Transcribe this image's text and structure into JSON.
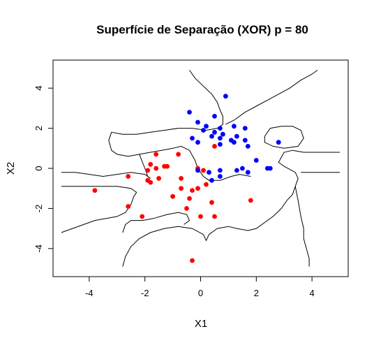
{
  "chart_data": {
    "type": "scatter",
    "title": "Superfície de Separação (XOR) p = 80",
    "xlabel": "X1",
    "ylabel": "X2",
    "xlim": [
      -5.3,
      5.3
    ],
    "ylim": [
      -5.4,
      5.4
    ],
    "x_ticks": [
      -4,
      -2,
      0,
      2,
      4
    ],
    "y_ticks": [
      -4,
      -2,
      0,
      2,
      4
    ],
    "grid": false,
    "legend": "none",
    "series": [
      {
        "color": "#ff0000",
        "points": [
          [
            -3.8,
            -1.1
          ],
          [
            -2.6,
            -0.4
          ],
          [
            -2.6,
            -1.9
          ],
          [
            -2.1,
            -2.4
          ],
          [
            -1.9,
            -0.1
          ],
          [
            -1.8,
            0.2
          ],
          [
            -1.9,
            -0.6
          ],
          [
            -1.8,
            -0.7
          ],
          [
            -1.6,
            0.7
          ],
          [
            -1.6,
            0.0
          ],
          [
            -1.5,
            -0.5
          ],
          [
            -1.3,
            0.1
          ],
          [
            -1.2,
            0.1
          ],
          [
            -1.0,
            -1.4
          ],
          [
            -0.8,
            0.7
          ],
          [
            -0.7,
            -0.5
          ],
          [
            -0.7,
            -1.0
          ],
          [
            -0.5,
            -2.0
          ],
          [
            -0.4,
            -1.5
          ],
          [
            -0.3,
            -1.1
          ],
          [
            -0.1,
            -1.0
          ],
          [
            -0.3,
            -4.6
          ],
          [
            -0.1,
            0.0
          ],
          [
            0.0,
            -2.4
          ],
          [
            0.1,
            -0.1
          ],
          [
            0.2,
            -0.8
          ],
          [
            0.4,
            -1.7
          ],
          [
            0.5,
            -2.4
          ],
          [
            0.5,
            1.1
          ],
          [
            1.8,
            -1.6
          ]
        ]
      },
      {
        "color": "#0000ff",
        "points": [
          [
            -0.4,
            2.8
          ],
          [
            -0.3,
            1.5
          ],
          [
            -0.1,
            1.3
          ],
          [
            -0.1,
            2.3
          ],
          [
            0.1,
            1.9
          ],
          [
            0.2,
            2.1
          ],
          [
            0.4,
            1.6
          ],
          [
            0.5,
            2.6
          ],
          [
            0.5,
            1.8
          ],
          [
            0.7,
            1.5
          ],
          [
            0.7,
            1.2
          ],
          [
            0.8,
            1.7
          ],
          [
            0.7,
            2.0
          ],
          [
            0.9,
            3.6
          ],
          [
            1.1,
            1.4
          ],
          [
            1.2,
            1.3
          ],
          [
            1.3,
            1.6
          ],
          [
            1.2,
            2.1
          ],
          [
            1.6,
            2.0
          ],
          [
            1.6,
            1.4
          ],
          [
            1.7,
            1.1
          ],
          [
            1.5,
            0.0
          ],
          [
            1.3,
            -0.1
          ],
          [
            1.7,
            -0.2
          ],
          [
            2.0,
            0.4
          ],
          [
            2.4,
            0.0
          ],
          [
            2.5,
            0.0
          ],
          [
            2.8,
            1.3
          ],
          [
            0.3,
            -0.2
          ],
          [
            0.4,
            -0.6
          ],
          [
            0.7,
            -0.1
          ],
          [
            0.7,
            -0.4
          ],
          [
            -0.1,
            -0.1
          ]
        ]
      }
    ],
    "contours": [
      [
        [
          -5.0,
          -3.2
        ],
        [
          -4.6,
          -3.0
        ],
        [
          -4.2,
          -2.8
        ],
        [
          -3.8,
          -2.6
        ],
        [
          -3.4,
          -2.5
        ],
        [
          -3.0,
          -2.4
        ],
        [
          -2.7,
          -2.2
        ],
        [
          -2.5,
          -1.8
        ],
        [
          -2.4,
          -1.4
        ],
        [
          -2.3,
          -1.2
        ],
        [
          -2.5,
          -1.0
        ],
        [
          -3.0,
          -0.9
        ],
        [
          -3.6,
          -0.9
        ],
        [
          -4.2,
          -0.9
        ],
        [
          -5.0,
          -0.9
        ]
      ],
      [
        [
          -5.0,
          -0.2
        ],
        [
          -4.5,
          -0.2
        ],
        [
          -4.0,
          -0.3
        ],
        [
          -3.5,
          -0.4
        ],
        [
          -3.0,
          -0.3
        ],
        [
          -2.5,
          -0.2
        ],
        [
          -2.0,
          -0.3
        ],
        [
          -1.8,
          -0.5
        ]
      ],
      [
        [
          -2.8,
          -4.9
        ],
        [
          -2.7,
          -4.4
        ],
        [
          -2.5,
          -3.9
        ],
        [
          -2.2,
          -3.5
        ],
        [
          -1.8,
          -3.2
        ],
        [
          -1.3,
          -3.0
        ],
        [
          -0.8,
          -2.9
        ],
        [
          -0.3,
          -3.0
        ],
        [
          0.1,
          -3.3
        ],
        [
          0.2,
          -3.6
        ],
        [
          0.3,
          -3.3
        ],
        [
          0.6,
          -3.0
        ],
        [
          1.0,
          -2.9
        ],
        [
          1.3,
          -3.0
        ]
      ],
      [
        [
          1.3,
          -3.0
        ],
        [
          1.7,
          -3.1
        ],
        [
          2.0,
          -3.0
        ],
        [
          2.3,
          -2.7
        ],
        [
          2.6,
          -2.4
        ],
        [
          2.9,
          -2.0
        ],
        [
          3.1,
          -1.6
        ],
        [
          3.3,
          -1.3
        ],
        [
          3.4,
          -0.9
        ],
        [
          3.5,
          -0.5
        ],
        [
          3.4,
          -0.2
        ],
        [
          3.0,
          0.1
        ],
        [
          2.8,
          0.3
        ],
        [
          3.0,
          0.8
        ],
        [
          3.3,
          0.9
        ],
        [
          3.7,
          0.8
        ],
        [
          4.1,
          0.8
        ],
        [
          4.6,
          0.8
        ],
        [
          5.0,
          0.8
        ]
      ],
      [
        [
          5.0,
          -0.2
        ],
        [
          4.5,
          -0.2
        ],
        [
          4.0,
          -0.2
        ],
        [
          3.6,
          -0.2
        ]
      ],
      [
        [
          3.4,
          -0.9
        ],
        [
          3.5,
          -1.6
        ],
        [
          3.6,
          -2.4
        ],
        [
          3.7,
          -3.0
        ],
        [
          3.7,
          -3.5
        ],
        [
          3.8,
          -4.0
        ],
        [
          3.9,
          -4.5
        ],
        [
          3.9,
          -4.9
        ]
      ],
      [
        [
          -2.8,
          -3.2
        ],
        [
          -2.7,
          -2.8
        ],
        [
          -2.5,
          -2.6
        ],
        [
          -2.1,
          -2.6
        ],
        [
          -1.7,
          -2.5
        ],
        [
          -1.2,
          -2.3
        ],
        [
          -0.8,
          -2.2
        ],
        [
          -0.5,
          -2.3
        ],
        [
          -0.4,
          -2.6
        ],
        [
          -0.6,
          -2.8
        ]
      ],
      [
        [
          -0.4,
          4.9
        ],
        [
          -0.2,
          4.5
        ],
        [
          0.1,
          4.1
        ],
        [
          0.4,
          3.7
        ],
        [
          0.6,
          3.3
        ],
        [
          0.7,
          2.9
        ],
        [
          0.8,
          2.6
        ],
        [
          0.8,
          2.2
        ],
        [
          0.6,
          2.0
        ],
        [
          0.2,
          1.9
        ],
        [
          -0.3,
          2.0
        ],
        [
          -0.8,
          2.0
        ],
        [
          -1.3,
          1.9
        ],
        [
          -1.8,
          1.8
        ],
        [
          -2.3,
          1.7
        ],
        [
          -2.8,
          1.7
        ],
        [
          -3.2,
          1.8
        ],
        [
          -3.3,
          1.4
        ],
        [
          -3.2,
          0.9
        ],
        [
          -3.0,
          0.7
        ],
        [
          -2.6,
          0.6
        ],
        [
          -2.2,
          0.7
        ],
        [
          -1.8,
          0.8
        ],
        [
          -1.4,
          0.9
        ],
        [
          -1.0,
          1.0
        ],
        [
          -0.7,
          1.1
        ],
        [
          -0.4,
          0.9
        ],
        [
          -0.2,
          0.4
        ],
        [
          -0.1,
          0.0
        ],
        [
          0.1,
          -0.4
        ],
        [
          0.3,
          -0.6
        ],
        [
          0.7,
          -0.6
        ],
        [
          1.1,
          -0.4
        ],
        [
          1.4,
          -0.3
        ],
        [
          1.8,
          -0.4
        ]
      ],
      [
        [
          0.9,
          2.2
        ],
        [
          1.2,
          2.4
        ],
        [
          1.6,
          2.8
        ],
        [
          2.0,
          3.1
        ],
        [
          2.4,
          3.4
        ],
        [
          2.8,
          3.7
        ],
        [
          3.2,
          4.0
        ],
        [
          3.6,
          4.4
        ],
        [
          4.0,
          4.7
        ],
        [
          4.2,
          4.9
        ]
      ],
      [
        [
          2.3,
          1.6
        ],
        [
          2.5,
          2.0
        ],
        [
          2.9,
          2.1
        ],
        [
          3.3,
          2.1
        ],
        [
          3.6,
          1.9
        ],
        [
          3.7,
          1.5
        ],
        [
          3.5,
          1.1
        ],
        [
          3.0,
          1.0
        ],
        [
          2.6,
          1.1
        ],
        [
          2.3,
          1.3
        ],
        [
          2.3,
          1.6
        ]
      ],
      [
        [
          -2.2,
          0.7
        ],
        [
          -2.0,
          0.0
        ],
        [
          -1.9,
          -0.4
        ],
        [
          -1.8,
          -0.5
        ]
      ]
    ]
  }
}
